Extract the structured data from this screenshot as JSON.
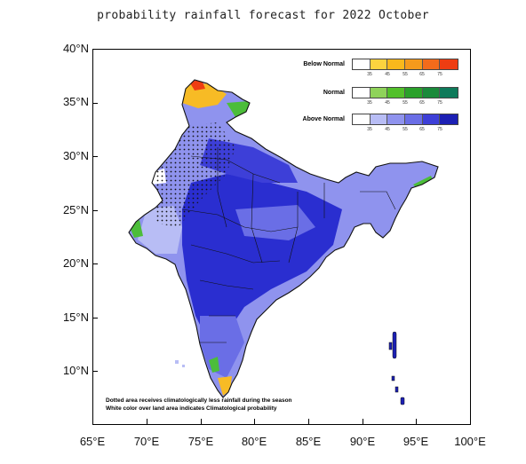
{
  "title": "probability rainfall forecast for 2022 October",
  "axes": {
    "lat_ticks": [
      "40°N",
      "35°N",
      "30°N",
      "25°N",
      "20°N",
      "15°N",
      "10°N"
    ],
    "lon_ticks": [
      "65°E",
      "70°E",
      "75°E",
      "80°E",
      "85°E",
      "90°E",
      "95°E",
      "100°E"
    ],
    "lat_range": [
      5,
      40
    ],
    "lon_range": [
      65,
      100
    ]
  },
  "legend": {
    "categories": [
      {
        "label": "Below Normal",
        "colors": [
          "#ffffff",
          "#fcd33f",
          "#f9b81c",
          "#f59a1c",
          "#f36b1b",
          "#ee3d12"
        ],
        "ticks": [
          "35",
          "45",
          "55",
          "65",
          "75"
        ]
      },
      {
        "label": "Normal",
        "colors": [
          "#ffffff",
          "#8fd35a",
          "#52c02a",
          "#2aa12a",
          "#1a8a3a",
          "#0e7a5a"
        ],
        "ticks": [
          "35",
          "45",
          "55",
          "65",
          "75"
        ]
      },
      {
        "label": "Above Normal",
        "colors": [
          "#ffffff",
          "#b8bdf5",
          "#8f93ee",
          "#6a6ee6",
          "#3d3fd8",
          "#1c20b4"
        ],
        "ticks": [
          "35",
          "45",
          "55",
          "65",
          "75"
        ]
      }
    ]
  },
  "notes": [
    "Dotted area receives climatologically less rainfall during the season",
    "White color over land area indicates Climatological probability"
  ],
  "colors": {
    "above_light": "#a8acf2",
    "above_mid": "#6e72e8",
    "above_dark": "#2a2ed0",
    "below": "#f7bb25",
    "normal": "#4cbd3a",
    "border": "#111111"
  }
}
